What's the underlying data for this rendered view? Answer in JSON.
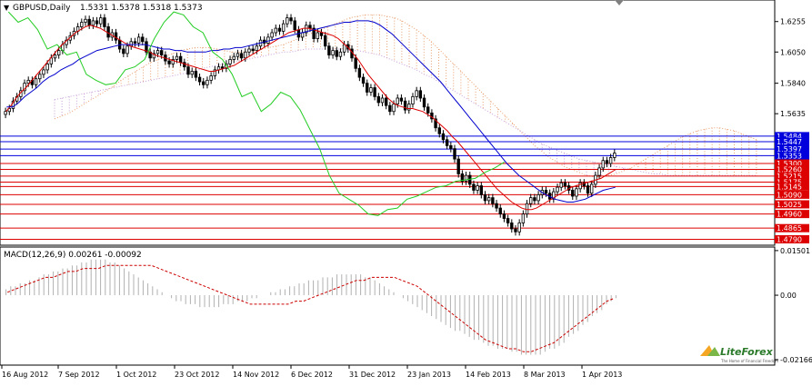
{
  "chart_data": {
    "type": "candlestick",
    "main": {
      "symbol": "GBPUSD,Daily",
      "ohlc_header": "1.5331 1.5378 1.5318 1.5373",
      "y_ticks": [
        "1.6255",
        "1.6050",
        "1.5840",
        "1.5635"
      ],
      "ylim": [
        1.475,
        1.64
      ],
      "hlines": [
        {
          "label": "1.5484",
          "value": 1.5484,
          "color": "#0000dd"
        },
        {
          "label": "1.5447",
          "value": 1.5447,
          "color": "#0000dd"
        },
        {
          "label": "1.5397",
          "value": 1.5397,
          "color": "#0000dd"
        },
        {
          "label": "1.5353",
          "value": 1.5353,
          "color": "#0000dd"
        },
        {
          "label": "1.5300",
          "value": 1.53,
          "color": "#dd0000"
        },
        {
          "label": "1.5260",
          "value": 1.526,
          "color": "#dd0000"
        },
        {
          "label": "1.5215",
          "value": 1.5215,
          "color": "#dd0000"
        },
        {
          "label": "1.5175",
          "value": 1.5175,
          "color": "#dd0000"
        },
        {
          "label": "1.5145",
          "value": 1.5145,
          "color": "#dd0000"
        },
        {
          "label": "1.5090",
          "value": 1.509,
          "color": "#dd0000"
        },
        {
          "label": "1.5025",
          "value": 1.5025,
          "color": "#dd0000"
        },
        {
          "label": "1.4960",
          "value": 1.496,
          "color": "#dd0000"
        },
        {
          "label": "1.4865",
          "value": 1.4865,
          "color": "#dd0000"
        },
        {
          "label": "1.4790",
          "value": 1.479,
          "color": "#dd0000"
        }
      ],
      "close": [
        1.565,
        1.567,
        1.572,
        1.575,
        1.579,
        1.584,
        1.586,
        1.583,
        1.587,
        1.59,
        1.593,
        1.597,
        1.601,
        1.603,
        1.606,
        1.61,
        1.613,
        1.616,
        1.619,
        1.622,
        1.625,
        1.627,
        1.623,
        1.626,
        1.624,
        1.628,
        1.622,
        1.615,
        1.618,
        1.613,
        1.607,
        1.604,
        1.609,
        1.612,
        1.611,
        1.615,
        1.612,
        1.605,
        1.601,
        1.604,
        1.606,
        1.603,
        1.599,
        1.597,
        1.6,
        1.602,
        1.598,
        1.595,
        1.59,
        1.592,
        1.588,
        1.585,
        1.583,
        1.586,
        1.589,
        1.593,
        1.595,
        1.594,
        1.597,
        1.6,
        1.602,
        1.604,
        1.601,
        1.605,
        1.607,
        1.606,
        1.609,
        1.613,
        1.611,
        1.615,
        1.618,
        1.621,
        1.619,
        1.624,
        1.628,
        1.626,
        1.62,
        1.615,
        1.618,
        1.623,
        1.621,
        1.614,
        1.618,
        1.616,
        1.609,
        1.603,
        1.606,
        1.602,
        1.605,
        1.61,
        1.607,
        1.601,
        1.594,
        1.588,
        1.584,
        1.578,
        1.581,
        1.575,
        1.571,
        1.574,
        1.569,
        1.565,
        1.57,
        1.574,
        1.572,
        1.566,
        1.57,
        1.575,
        1.579,
        1.574,
        1.568,
        1.564,
        1.56,
        1.554,
        1.55,
        1.546,
        1.542,
        1.54,
        1.533,
        1.523,
        1.518,
        1.522,
        1.516,
        1.512,
        1.515,
        1.509,
        1.505,
        1.507,
        1.503,
        1.5,
        1.496,
        1.493,
        1.49,
        1.486,
        1.484,
        1.49,
        1.496,
        1.503,
        1.507,
        1.505,
        1.509,
        1.512,
        1.51,
        1.506,
        1.511,
        1.514,
        1.517,
        1.515,
        1.512,
        1.508,
        1.513,
        1.517,
        1.515,
        1.51,
        1.516,
        1.522,
        1.527,
        1.532,
        1.53,
        1.534,
        1.537
      ],
      "tenkan_red": [
        1.565,
        1.569,
        1.574,
        1.578,
        1.581,
        1.585,
        1.589,
        1.593,
        1.597,
        1.601,
        1.605,
        1.609,
        1.612,
        1.615,
        1.618,
        1.62,
        1.622,
        1.623,
        1.622,
        1.621,
        1.619,
        1.617,
        1.615,
        1.613,
        1.611,
        1.609,
        1.608,
        1.607,
        1.606,
        1.605,
        1.603,
        1.602,
        1.601,
        1.6,
        1.599,
        1.598,
        1.597,
        1.596,
        1.595,
        1.594,
        1.593,
        1.592,
        1.592,
        1.593,
        1.594,
        1.595,
        1.596,
        1.598,
        1.6,
        1.602,
        1.604,
        1.606,
        1.608,
        1.61,
        1.612,
        1.614,
        1.616,
        1.618,
        1.619,
        1.62,
        1.621,
        1.621,
        1.62,
        1.619,
        1.618,
        1.617,
        1.616,
        1.614,
        1.611,
        1.608,
        1.604,
        1.6,
        1.595,
        1.59,
        1.586,
        1.582,
        1.578,
        1.574,
        1.571,
        1.569,
        1.568,
        1.567,
        1.567,
        1.566,
        1.565,
        1.563,
        1.561,
        1.558,
        1.555,
        1.552,
        1.548,
        1.545,
        1.541,
        1.537,
        1.533,
        1.529,
        1.525,
        1.521,
        1.517,
        1.513,
        1.51,
        1.507,
        1.504,
        1.502,
        1.5,
        1.499,
        1.499,
        1.5,
        1.502,
        1.504,
        1.506,
        1.508,
        1.51,
        1.512,
        1.514,
        1.515,
        1.516,
        1.517,
        1.518,
        1.519,
        1.52,
        1.522,
        1.524,
        1.526
      ],
      "kijun_blue": [
        1.568,
        1.568,
        1.571,
        1.575,
        1.578,
        1.581,
        1.585,
        1.588,
        1.59,
        1.593,
        1.595,
        1.597,
        1.6,
        1.602,
        1.604,
        1.606,
        1.607,
        1.608,
        1.609,
        1.61,
        1.61,
        1.61,
        1.61,
        1.61,
        1.609,
        1.608,
        1.607,
        1.607,
        1.606,
        1.606,
        1.605,
        1.605,
        1.605,
        1.605,
        1.606,
        1.606,
        1.607,
        1.607,
        1.608,
        1.608,
        1.609,
        1.61,
        1.611,
        1.612,
        1.613,
        1.614,
        1.615,
        1.616,
        1.617,
        1.618,
        1.619,
        1.62,
        1.621,
        1.622,
        1.623,
        1.624,
        1.625,
        1.625,
        1.626,
        1.626,
        1.626,
        1.625,
        1.623,
        1.62,
        1.617,
        1.613,
        1.609,
        1.605,
        1.601,
        1.597,
        1.593,
        1.589,
        1.585,
        1.58,
        1.575,
        1.57,
        1.565,
        1.56,
        1.555,
        1.55,
        1.545,
        1.54,
        1.535,
        1.53,
        1.526,
        1.522,
        1.519,
        1.516,
        1.513,
        1.51,
        1.508,
        1.506,
        1.505,
        1.504,
        1.504,
        1.505,
        1.506,
        1.508,
        1.51,
        1.512,
        1.513,
        1.514
      ],
      "chikou_green": [
        1.632,
        1.625,
        1.628,
        1.62,
        1.607,
        1.61,
        1.603,
        1.605,
        1.59,
        1.586,
        1.583,
        1.584,
        1.593,
        1.595,
        1.6,
        1.614,
        1.625,
        1.632,
        1.63,
        1.622,
        1.618,
        1.605,
        1.6,
        1.59,
        1.575,
        1.578,
        1.565,
        1.57,
        1.578,
        1.575,
        1.566,
        1.553,
        1.54,
        1.522,
        1.51,
        1.506,
        1.502,
        1.496,
        1.495,
        1.499,
        1.5,
        1.506,
        1.508,
        1.511,
        1.514,
        1.515,
        1.518,
        1.519,
        1.52,
        1.524,
        1.527,
        1.531
      ],
      "cloud_a": [
        1.56,
        1.562,
        1.564,
        1.567,
        1.57,
        1.573,
        1.576,
        1.579,
        1.582,
        1.586,
        1.589,
        1.592,
        1.595,
        1.598,
        1.6,
        1.602,
        1.604,
        1.606,
        1.607,
        1.608,
        1.608,
        1.608,
        1.607,
        1.606,
        1.605,
        1.605,
        1.605,
        1.606,
        1.607,
        1.608,
        1.609,
        1.61,
        1.612,
        1.614,
        1.616,
        1.618,
        1.62,
        1.622,
        1.624,
        1.626,
        1.628,
        1.629,
        1.63,
        1.63,
        1.63,
        1.629,
        1.628,
        1.626,
        1.623,
        1.62,
        1.616,
        1.612,
        1.607,
        1.602,
        1.597,
        1.592,
        1.587,
        1.582,
        1.577,
        1.572,
        1.567,
        1.562,
        1.557,
        1.552,
        1.547,
        1.542,
        1.538,
        1.534,
        1.531,
        1.528,
        1.526,
        1.524,
        1.522,
        1.521,
        1.521,
        1.522,
        1.523,
        1.525,
        1.527,
        1.53,
        1.533,
        1.536,
        1.539,
        1.542,
        1.545,
        1.548,
        1.55,
        1.552,
        1.553,
        1.554,
        1.554,
        1.553,
        1.552,
        1.55,
        1.548,
        1.546
      ],
      "cloud_b": [
        1.573,
        1.574,
        1.575,
        1.576,
        1.577,
        1.578,
        1.579,
        1.58,
        1.581,
        1.582,
        1.583,
        1.584,
        1.585,
        1.586,
        1.587,
        1.588,
        1.589,
        1.59,
        1.591,
        1.592,
        1.594,
        1.595,
        1.596,
        1.597,
        1.598,
        1.599,
        1.6,
        1.601,
        1.602,
        1.603,
        1.604,
        1.605,
        1.605,
        1.606,
        1.607,
        1.607,
        1.607,
        1.607,
        1.607,
        1.607,
        1.606,
        1.606,
        1.605,
        1.604,
        1.603,
        1.601,
        1.599,
        1.597,
        1.595,
        1.593,
        1.59,
        1.588,
        1.585,
        1.582,
        1.579,
        1.576,
        1.573,
        1.57,
        1.567,
        1.564,
        1.561,
        1.558,
        1.555,
        1.552,
        1.549,
        1.546,
        1.543,
        1.541,
        1.539,
        1.537,
        1.535,
        1.533,
        1.532,
        1.531,
        1.53,
        1.529,
        1.528,
        1.527,
        1.526,
        1.525,
        1.524,
        1.523,
        1.523,
        1.522,
        1.522,
        1.522,
        1.522,
        1.522,
        1.522,
        1.522,
        1.522,
        1.522,
        1.522,
        1.522,
        1.522,
        1.522
      ],
      "cloud_start_index": 0
    },
    "macd": {
      "label": "MACD(12,26,9) 0.00261 -0.00092",
      "y_ticks": [
        "0.01501",
        "0.00",
        "-0.02166"
      ],
      "ylim": [
        -0.0235,
        0.0162
      ],
      "histogram": [
        0.002,
        0.003,
        0.003,
        0.004,
        0.004,
        0.005,
        0.005,
        0.006,
        0.007,
        0.007,
        0.008,
        0.008,
        0.009,
        0.009,
        0.01,
        0.01,
        0.011,
        0.011,
        0.012,
        0.012,
        0.012,
        0.012,
        0.011,
        0.011,
        0.01,
        0.009,
        0.008,
        0.007,
        0.006,
        0.005,
        0.004,
        0.003,
        0.002,
        0.001,
        0.0,
        -0.001,
        -0.002,
        -0.002,
        -0.003,
        -0.003,
        -0.003,
        -0.004,
        -0.004,
        -0.004,
        -0.004,
        -0.004,
        -0.003,
        -0.003,
        -0.003,
        -0.002,
        -0.002,
        -0.002,
        -0.001,
        -0.001,
        0.0,
        0.0,
        0.001,
        0.001,
        0.002,
        0.002,
        0.003,
        0.003,
        0.004,
        0.004,
        0.005,
        0.005,
        0.005,
        0.006,
        0.006,
        0.006,
        0.007,
        0.007,
        0.007,
        0.007,
        0.007,
        0.007,
        0.006,
        0.006,
        0.005,
        0.004,
        0.003,
        0.002,
        0.001,
        0.0,
        -0.001,
        -0.002,
        -0.003,
        -0.004,
        -0.005,
        -0.006,
        -0.007,
        -0.008,
        -0.009,
        -0.01,
        -0.011,
        -0.012,
        -0.012,
        -0.013,
        -0.014,
        -0.015,
        -0.015,
        -0.016,
        -0.017,
        -0.017,
        -0.018,
        -0.018,
        -0.018,
        -0.019,
        -0.019,
        -0.02,
        -0.02,
        -0.02,
        -0.02,
        -0.02,
        -0.019,
        -0.018,
        -0.018,
        -0.017,
        -0.016,
        -0.014,
        -0.013,
        -0.012,
        -0.01,
        -0.009,
        -0.007,
        -0.006,
        -0.005,
        -0.003,
        -0.002,
        -0.001
      ],
      "signal": [
        0.001,
        0.002,
        0.003,
        0.004,
        0.005,
        0.006,
        0.006,
        0.007,
        0.008,
        0.008,
        0.009,
        0.009,
        0.009,
        0.01,
        0.01,
        0.01,
        0.01,
        0.01,
        0.01,
        0.01,
        0.009,
        0.008,
        0.007,
        0.006,
        0.005,
        0.004,
        0.003,
        0.002,
        0.001,
        0.0,
        -0.001,
        -0.002,
        -0.003,
        -0.003,
        -0.003,
        -0.003,
        -0.003,
        -0.003,
        -0.002,
        -0.002,
        -0.001,
        0.0,
        0.001,
        0.002,
        0.003,
        0.004,
        0.005,
        0.005,
        0.006,
        0.006,
        0.006,
        0.006,
        0.005,
        0.004,
        0.003,
        0.001,
        -0.001,
        -0.003,
        -0.005,
        -0.007,
        -0.009,
        -0.011,
        -0.013,
        -0.015,
        -0.016,
        -0.017,
        -0.018,
        -0.018,
        -0.019,
        -0.019,
        -0.018,
        -0.017,
        -0.016,
        -0.014,
        -0.012,
        -0.01,
        -0.008,
        -0.006,
        -0.004,
        -0.002,
        -0.001
      ],
      "signal_color": "#cc0000",
      "hist_color": "#b0b0b0"
    },
    "x_ticks": [
      "16 Aug 2012",
      "7 Sep 2012",
      "1 Oct 2012",
      "23 Oct 2012",
      "14 Nov 2012",
      "6 Dec 2012",
      "31 Dec 2012",
      "23 Jan 2013",
      "14 Feb 2013",
      "8 Mar 2013",
      "1 Apr 2013"
    ],
    "colors": {
      "bull": "#000000",
      "bear": "#000000",
      "tenkan": "#dd0000",
      "kijun": "#0000cc",
      "chikou": "#22cc22",
      "cloud_a": "#e8a070",
      "cloud_b": "#c8a0d8",
      "tag_red": "#dd0000",
      "tag_blue": "#0000dd"
    }
  },
  "logo": {
    "name": "LiteForex",
    "tagline": "The Home of Financial Freedom"
  }
}
